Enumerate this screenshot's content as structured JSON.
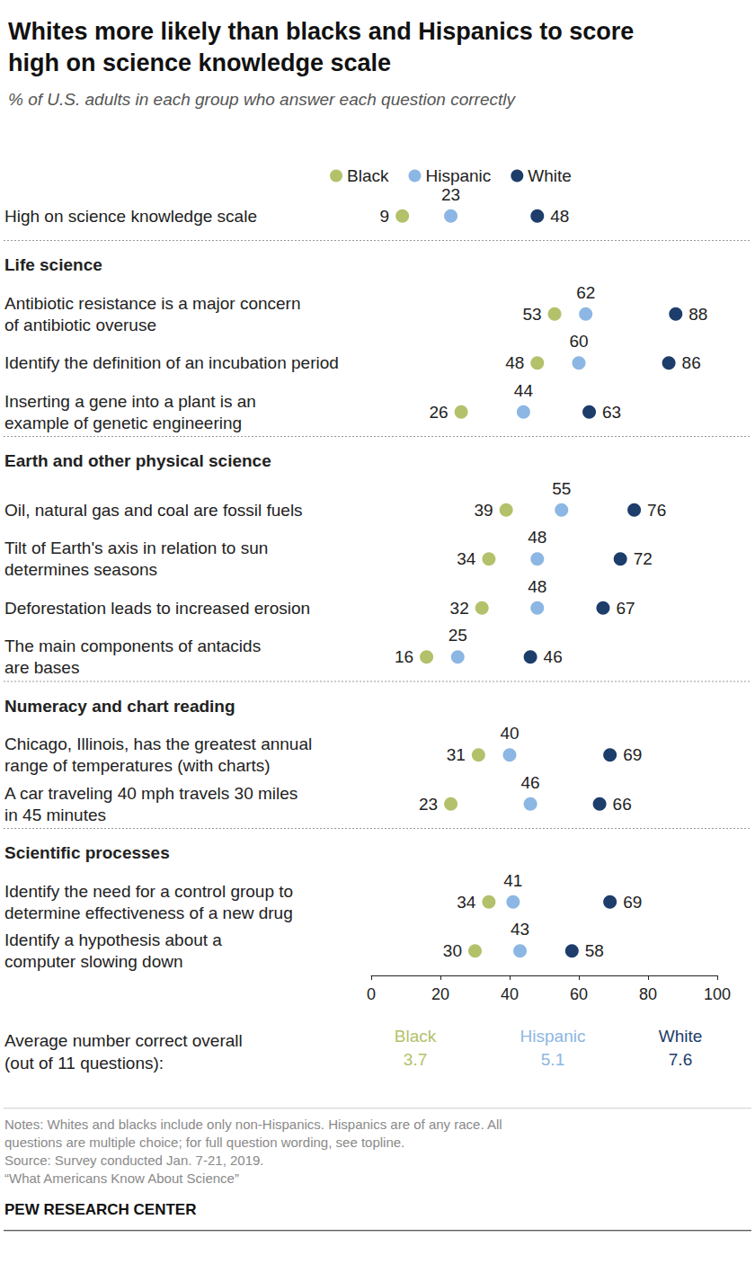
{
  "chart_data": {
    "type": "scatter",
    "orientation": "horizontal",
    "title": "Whites more likely than blacks and Hispanics to score\nhigh on science knowledge scale",
    "subtitle": "% of U.S. adults in each group who answer each question correctly",
    "categories": [
      "High on science knowledge scale",
      "Antibiotic resistance is a major concern\nof antibiotic overuse",
      "Identify the definition of an incubation period",
      "Inserting a gene into a plant is an\nexample of genetic engineering",
      "Oil, natural gas and coal are fossil fuels",
      "Tilt of Earth's axis in relation to sun\ndetermines seasons",
      "Deforestation leads to increased erosion",
      "The main components of antacids\nare bases",
      "Chicago, Illinois, has the greatest annual\nrange of temperatures (with charts)",
      "A car traveling 40 mph travels 30 miles\nin 45 minutes",
      "Identify the need for a control group to\ndetermine effectiveness of a new drug",
      "Identify a hypothesis about a\ncomputer slowing down"
    ],
    "sections": [
      {
        "title": "Life science",
        "categories": [
          "Antibiotic resistance is a major concern\nof antibiotic overuse",
          "Identify the definition of an incubation period",
          "Inserting a gene into a plant is an\nexample of genetic engineering"
        ]
      },
      {
        "title": "Earth and other physical science",
        "categories": [
          "Oil, natural gas and coal are fossil fuels",
          "Tilt of Earth's axis in relation to sun\ndetermines seasons",
          "Deforestation leads to increased erosion",
          "The main components of antacids\nare bases"
        ]
      },
      {
        "title": "Numeracy and chart reading",
        "categories": [
          "Chicago, Illinois, has the greatest annual\nrange of temperatures (with charts)",
          "A car traveling 40 mph travels 30 miles\nin 45 minutes"
        ]
      },
      {
        "title": "Scientific processes",
        "categories": [
          "Identify the need for a control group to\ndetermine effectiveness of a new drug",
          "Identify a hypothesis about a\ncomputer slowing down"
        ]
      }
    ],
    "series": [
      {
        "name": "Black",
        "color": "#b3c16a",
        "values": [
          9,
          53,
          48,
          26,
          39,
          34,
          32,
          16,
          31,
          23,
          34,
          30
        ],
        "average": 3.7
      },
      {
        "name": "Hispanic",
        "color": "#8cb6e3",
        "values": [
          23,
          62,
          60,
          44,
          55,
          48,
          48,
          25,
          40,
          46,
          41,
          43
        ],
        "average": 5.1
      },
      {
        "name": "White",
        "color": "#1d3d6b",
        "values": [
          48,
          88,
          86,
          63,
          76,
          72,
          67,
          46,
          69,
          66,
          69,
          58
        ],
        "average": 7.6
      }
    ],
    "average_label": "Average number correct overall\n(out of 11 questions):",
    "xlim": [
      0,
      100
    ],
    "xticks": [
      0,
      20,
      40,
      60,
      80,
      100
    ],
    "grid": false,
    "legend": "top",
    "data_labels": true,
    "marker": "circle",
    "notes": "Notes: Whites and blacks include only non-Hispanics. Hispanics are of any race. All\nquestions are multiple choice; for full question wording, see topline.",
    "source": [
      "Source: Survey conducted Jan. 7-21, 2019.",
      "“What Americans Know About Science”"
    ],
    "credit": "PEW RESEARCH CENTER"
  }
}
